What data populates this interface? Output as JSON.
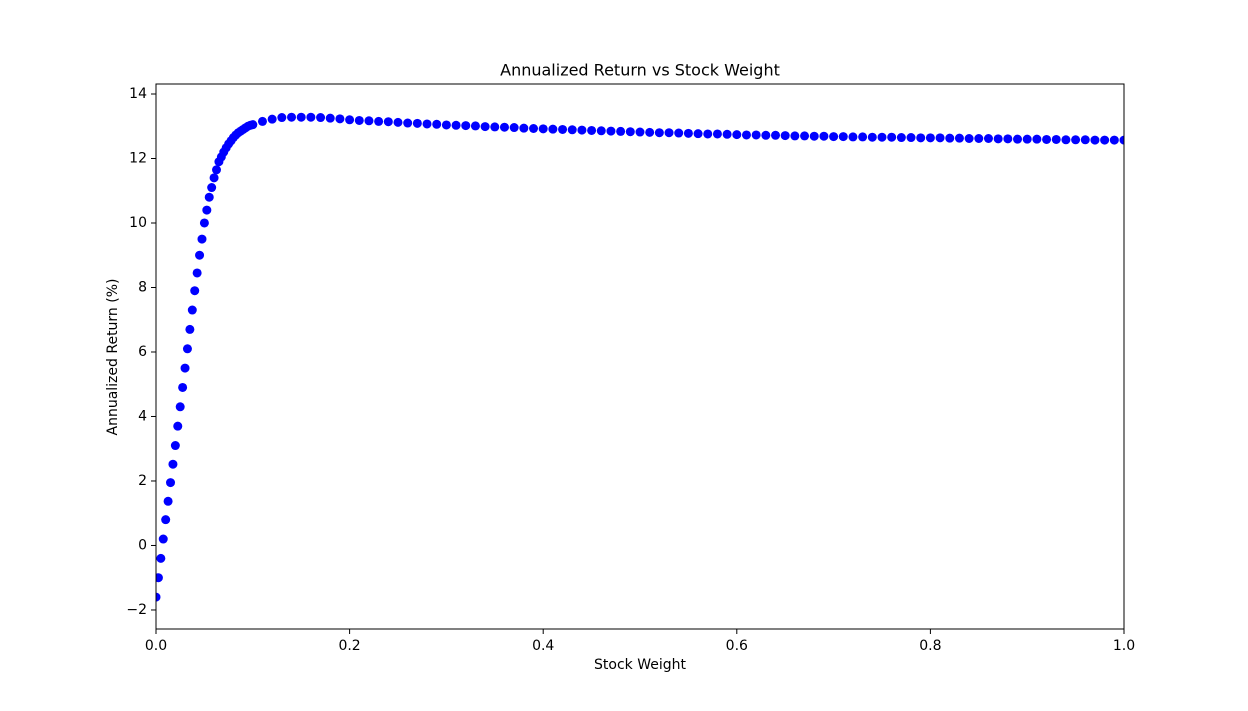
{
  "chart_data": {
    "type": "scatter",
    "title": "Annualized Return vs Stock Weight",
    "x_label": "Stock Weight",
    "y_label": "Annualized Return (%)",
    "color": "#0000ff",
    "x": [
      0,
      0.0025,
      0.005,
      0.0075,
      0.01,
      0.0125,
      0.015,
      0.0175,
      0.02,
      0.0225,
      0.025,
      0.0275,
      0.03,
      0.0325,
      0.035,
      0.0375,
      0.04,
      0.0425,
      0.045,
      0.0475,
      0.05,
      0.0525,
      0.055,
      0.0575,
      0.06,
      0.0625,
      0.065,
      0.0675,
      0.07,
      0.0725,
      0.075,
      0.0775,
      0.08,
      0.0825,
      0.085,
      0.0875,
      0.09,
      0.0925,
      0.095,
      0.0975,
      0.1,
      0.11,
      0.12,
      0.13,
      0.14,
      0.15,
      0.16,
      0.17,
      0.18,
      0.19,
      0.2,
      0.21,
      0.22,
      0.23,
      0.24,
      0.25,
      0.26,
      0.27,
      0.28,
      0.29,
      0.3,
      0.31,
      0.32,
      0.33,
      0.34,
      0.35,
      0.36,
      0.37,
      0.38,
      0.39,
      0.4,
      0.41,
      0.42,
      0.43,
      0.44,
      0.45,
      0.46,
      0.47,
      0.48,
      0.49,
      0.5,
      0.51,
      0.52,
      0.53,
      0.54,
      0.55,
      0.56,
      0.57,
      0.58,
      0.59,
      0.6,
      0.61,
      0.62,
      0.63,
      0.64,
      0.65,
      0.66,
      0.67,
      0.68,
      0.69,
      0.7,
      0.71,
      0.72,
      0.73,
      0.74,
      0.75,
      0.76,
      0.77,
      0.78,
      0.79,
      0.8,
      0.81,
      0.82,
      0.83,
      0.84,
      0.85,
      0.86,
      0.87,
      0.88,
      0.89,
      0.9,
      0.91,
      0.92,
      0.93,
      0.94,
      0.95,
      0.96,
      0.97,
      0.98,
      0.99,
      1.0
    ],
    "y": [
      -1.6,
      -1.0,
      -0.4,
      0.2,
      0.8,
      1.37,
      1.95,
      2.52,
      3.1,
      3.7,
      4.3,
      4.9,
      5.5,
      6.1,
      6.7,
      7.3,
      7.9,
      8.45,
      9.0,
      9.5,
      10.0,
      10.4,
      10.8,
      11.1,
      11.4,
      11.65,
      11.9,
      12.05,
      12.2,
      12.33,
      12.45,
      12.55,
      12.65,
      12.73,
      12.8,
      12.85,
      12.9,
      12.95,
      13.0,
      13.03,
      13.05,
      13.15,
      13.22,
      13.27,
      13.28,
      13.28,
      13.28,
      13.27,
      13.25,
      13.23,
      13.2,
      13.18,
      13.17,
      13.15,
      13.14,
      13.12,
      13.1,
      13.09,
      13.07,
      13.06,
      13.04,
      13.03,
      13.02,
      13.01,
      12.99,
      12.98,
      12.97,
      12.96,
      12.94,
      12.93,
      12.92,
      12.91,
      12.9,
      12.89,
      12.88,
      12.87,
      12.86,
      12.85,
      12.84,
      12.83,
      12.82,
      12.81,
      12.8,
      12.8,
      12.79,
      12.78,
      12.77,
      12.76,
      12.76,
      12.75,
      12.74,
      12.73,
      12.73,
      12.72,
      12.72,
      12.71,
      12.7,
      12.7,
      12.69,
      12.69,
      12.68,
      12.68,
      12.67,
      12.67,
      12.66,
      12.66,
      12.66,
      12.65,
      12.65,
      12.64,
      12.64,
      12.64,
      12.63,
      12.63,
      12.62,
      12.62,
      12.62,
      12.61,
      12.61,
      12.6,
      12.6,
      12.6,
      12.59,
      12.59,
      12.58,
      12.58,
      12.58,
      12.57,
      12.57,
      12.57,
      12.57
    ],
    "xlim": [
      0,
      1
    ],
    "ylim": [
      -2.59,
      14.31
    ],
    "xticks": [
      {
        "value": 0,
        "label": "0.0"
      },
      0.2,
      0.4,
      0.6,
      0.8,
      {
        "value": 1,
        "label": "1.0"
      }
    ],
    "yticks": [
      {
        "value": -2,
        "label": "−2"
      },
      0,
      2,
      4,
      6,
      8,
      10,
      12,
      14
    ]
  }
}
